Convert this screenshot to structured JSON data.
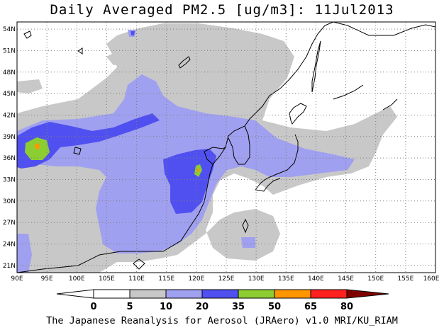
{
  "title": "Daily Averaged PM2.5 [ug/m3]: 11Jul2013",
  "footer": "The Japanese Reanalysis for Aerosol (JRAero) v1.0 MRI/KU_RIAM",
  "map": {
    "lon_range": [
      90,
      160
    ],
    "lat_range": [
      20,
      55
    ],
    "lon_labels": [
      "90E",
      "95E",
      "100E",
      "105E",
      "110E",
      "115E",
      "120E",
      "125E",
      "130E",
      "135E",
      "140E",
      "145E",
      "150E",
      "155E",
      "160E"
    ],
    "lat_labels": [
      "21N",
      "24N",
      "27N",
      "30N",
      "33N",
      "36N",
      "39N",
      "42N",
      "45N",
      "48N",
      "51N",
      "54N"
    ],
    "grid": "dotted"
  },
  "colorbar": {
    "levels": [
      "0",
      "5",
      "10",
      "20",
      "35",
      "50",
      "65",
      "80"
    ],
    "colors": [
      "#ffffff",
      "#ffffff",
      "#c8c8c8",
      "#a0a0f0",
      "#5050f0",
      "#8ccd32",
      "#ff9600",
      "#ff2020",
      "#800000"
    ]
  }
}
